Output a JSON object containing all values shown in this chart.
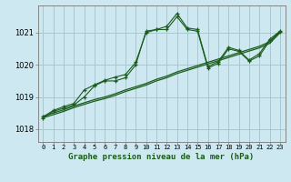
{
  "title": "Graphe pression niveau de la mer (hPa)",
  "bg_color": "#cde8f0",
  "grid_color": "#a8c8d0",
  "line_color": "#1a5c1a",
  "x_labels": [
    "0",
    "1",
    "2",
    "3",
    "4",
    "5",
    "6",
    "7",
    "8",
    "9",
    "10",
    "11",
    "12",
    "13",
    "14",
    "15",
    "16",
    "17",
    "18",
    "19",
    "20",
    "21",
    "22",
    "23"
  ],
  "xlim": [
    -0.5,
    23.5
  ],
  "ylim": [
    1017.6,
    1021.85
  ],
  "yticks": [
    1018,
    1019,
    1020,
    1021
  ],
  "jagged_line": [
    1018.35,
    1018.55,
    1018.65,
    1018.75,
    1019.0,
    1019.35,
    1019.5,
    1019.5,
    1019.6,
    1020.0,
    1021.05,
    1021.1,
    1021.2,
    1021.6,
    1021.15,
    1021.1,
    1019.95,
    1020.1,
    1020.55,
    1020.45,
    1020.15,
    1020.35,
    1020.8,
    1021.05
  ],
  "smooth_line1": [
    1018.4,
    1018.5,
    1018.6,
    1018.72,
    1018.82,
    1018.92,
    1019.0,
    1019.1,
    1019.22,
    1019.32,
    1019.42,
    1019.55,
    1019.65,
    1019.78,
    1019.88,
    1019.98,
    1020.08,
    1020.18,
    1020.28,
    1020.38,
    1020.48,
    1020.58,
    1020.72,
    1021.05
  ],
  "smooth_line2": [
    1018.35,
    1018.45,
    1018.55,
    1018.67,
    1018.77,
    1018.87,
    1018.95,
    1019.05,
    1019.17,
    1019.27,
    1019.37,
    1019.5,
    1019.6,
    1019.73,
    1019.83,
    1019.93,
    1020.03,
    1020.13,
    1020.23,
    1020.33,
    1020.43,
    1020.53,
    1020.67,
    1021.0
  ],
  "marked_line": [
    1018.38,
    1018.58,
    1018.7,
    1018.8,
    1019.22,
    1019.38,
    1019.52,
    1019.62,
    1019.7,
    1020.08,
    1021.0,
    1021.1,
    1021.1,
    1021.5,
    1021.1,
    1021.05,
    1019.9,
    1020.05,
    1020.5,
    1020.42,
    1020.12,
    1020.28,
    1020.75,
    1021.02
  ]
}
